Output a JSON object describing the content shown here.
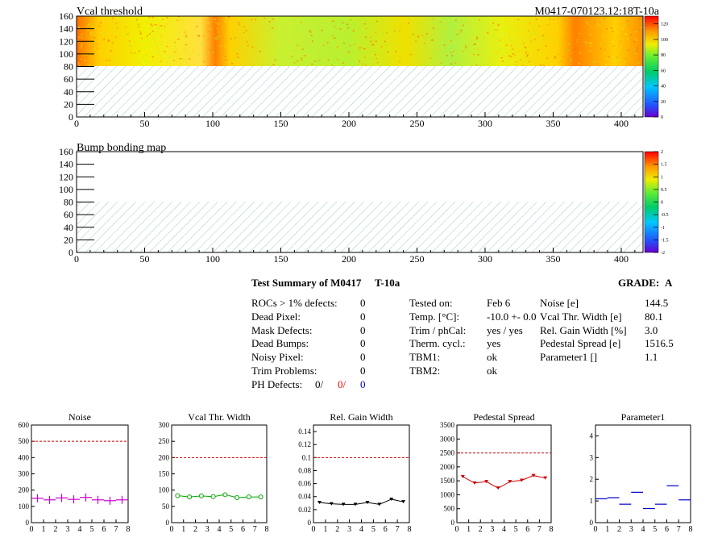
{
  "maps": {
    "vcal": {
      "title": "Vcal threshold",
      "module_label": "M0417-070123.12:18T-10a",
      "x_ticks": [
        "0",
        "50",
        "100",
        "150",
        "200",
        "250",
        "300",
        "350",
        "400"
      ],
      "y_ticks": [
        "0",
        "20",
        "40",
        "60",
        "80",
        "100",
        "120",
        "140",
        "160"
      ],
      "scale_ticks": [
        "0",
        "20",
        "40",
        "60",
        "80",
        "100",
        "120"
      ]
    },
    "bump": {
      "title": "Bump bonding map",
      "x_ticks": [
        "0",
        "50",
        "100",
        "150",
        "200",
        "250",
        "300",
        "350",
        "400"
      ],
      "y_ticks": [
        "0",
        "20",
        "40",
        "60",
        "80",
        "100",
        "120",
        "140",
        "160"
      ],
      "scale_ticks": [
        "-2",
        "-1.5",
        "-1",
        "-0.5",
        "0",
        "0.5",
        "1",
        "1.5",
        "2"
      ]
    }
  },
  "summary": {
    "title": "Test Summary of M0417",
    "temp_tag": "T-10a",
    "grade_label": "GRADE:",
    "grade": "A",
    "defects": [
      {
        "label": "ROCs > 1% defects:",
        "value": "0"
      },
      {
        "label": "Dead Pixel:",
        "value": "0"
      },
      {
        "label": "Mask Defects:",
        "value": "0"
      },
      {
        "label": "Dead Bumps:",
        "value": "0"
      },
      {
        "label": "Noisy Pixel:",
        "value": "0"
      },
      {
        "label": "Trim Problems:",
        "value": "0"
      }
    ],
    "ph_label": "PH Defects:",
    "ph_values": [
      "0/",
      "0/",
      "0"
    ],
    "ph_colors": [
      "#000000",
      "#ff0000",
      "#0000cc"
    ],
    "conditions": [
      {
        "label": "Tested on:",
        "value": "Feb 6"
      },
      {
        "label": "Temp. [°C]:",
        "value": "-10.0 +- 0.0"
      },
      {
        "label": "Trim / phCal:",
        "value": "yes / yes"
      },
      {
        "label": "Therm. cycl.:",
        "value": "yes"
      },
      {
        "label": "TBM1:",
        "value": "ok"
      },
      {
        "label": "TBM2:",
        "value": "ok"
      }
    ],
    "params": [
      {
        "label": "Noise [e]",
        "value": "144.5"
      },
      {
        "label": "Vcal Thr. Width [e]",
        "value": "80.1"
      },
      {
        "label": "Rel. Gain Width [%]",
        "value": "3.0"
      },
      {
        "label": "Pedestal Spread [e]",
        "value": "1516.5"
      },
      {
        "label": "Parameter1 []",
        "value": "1.1"
      }
    ]
  },
  "chart_data": [
    {
      "type": "heatmap",
      "title": "Vcal threshold",
      "xlim": [
        0,
        416
      ],
      "ylim": [
        0,
        160
      ],
      "z_range": [
        0,
        130
      ],
      "hatched_region_y": [
        0,
        80
      ],
      "typical_value": 95
    },
    {
      "type": "heatmap",
      "title": "Bump bonding map",
      "xlim": [
        0,
        416
      ],
      "ylim": [
        0,
        160
      ],
      "z_range": [
        -2,
        2
      ],
      "hatched_region_y": [
        0,
        80
      ]
    },
    {
      "type": "scatter",
      "title": "Noise",
      "color": "#cc00cc",
      "x": [
        0.5,
        1.5,
        2.5,
        3.5,
        4.5,
        5.5,
        6.5,
        7.5
      ],
      "values": [
        150,
        140,
        152,
        143,
        155,
        140,
        135,
        140
      ],
      "xlim": [
        0,
        8
      ],
      "ylim": [
        0,
        600
      ],
      "reference": 500,
      "x_ticks": [
        "0",
        "1",
        "2",
        "3",
        "4",
        "5",
        "6",
        "7",
        "8"
      ],
      "y_ticks": [
        "0",
        "100",
        "200",
        "300",
        "400",
        "500",
        "600"
      ]
    },
    {
      "type": "line",
      "title": "Vcal Thr. Width",
      "color": "#00aa00",
      "x": [
        0.5,
        1.5,
        2.5,
        3.5,
        4.5,
        5.5,
        6.5,
        7.5
      ],
      "values": [
        83,
        79,
        82,
        80,
        86,
        77,
        79,
        79
      ],
      "xlim": [
        0,
        8
      ],
      "ylim": [
        0,
        300
      ],
      "reference": 200,
      "x_ticks": [
        "0",
        "1",
        "2",
        "3",
        "4",
        "5",
        "6",
        "7",
        "8"
      ],
      "y_ticks": [
        "0",
        "50",
        "100",
        "150",
        "200",
        "250",
        "300"
      ]
    },
    {
      "type": "line",
      "title": "Rel. Gain Width",
      "color": "#000000",
      "x": [
        0.5,
        1.5,
        2.5,
        3.5,
        4.5,
        5.5,
        6.5,
        7.5
      ],
      "values": [
        0.031,
        0.029,
        0.028,
        0.028,
        0.031,
        0.028,
        0.036,
        0.032
      ],
      "xlim": [
        0,
        8
      ],
      "ylim": [
        0,
        0.15
      ],
      "reference": 0.1,
      "x_ticks": [
        "0",
        "1",
        "2",
        "3",
        "4",
        "5",
        "6",
        "7",
        "8"
      ],
      "y_ticks": [
        "0",
        "0.02",
        "0.04",
        "0.06",
        "0.08",
        "0.1",
        "0.12",
        "0.14"
      ]
    },
    {
      "type": "line",
      "title": "Pedestal Spread",
      "color": "#cc0000",
      "x": [
        0.5,
        1.5,
        2.5,
        3.5,
        4.5,
        5.5,
        6.5,
        7.5
      ],
      "values": [
        1650,
        1420,
        1470,
        1240,
        1470,
        1520,
        1690,
        1600
      ],
      "xlim": [
        0,
        8
      ],
      "ylim": [
        0,
        3500
      ],
      "reference": 2500,
      "x_ticks": [
        "0",
        "1",
        "2",
        "3",
        "4",
        "5",
        "6",
        "7",
        "8"
      ],
      "y_ticks": [
        "0",
        "500",
        "1000",
        "1500",
        "2000",
        "2500",
        "3000",
        "3500"
      ]
    },
    {
      "type": "scatter",
      "title": "Parameter1",
      "color": "#0000cc",
      "x": [
        0.5,
        1.5,
        2.5,
        3.5,
        4.5,
        5.5,
        6.5,
        7.5
      ],
      "values": [
        1.1,
        1.15,
        0.85,
        1.4,
        0.65,
        0.85,
        1.7,
        1.05
      ],
      "xlim": [
        0,
        8
      ],
      "ylim": [
        0,
        4.5
      ],
      "x_ticks": [
        "0",
        "1",
        "2",
        "3",
        "4",
        "5",
        "6",
        "7",
        "8"
      ],
      "y_ticks": [
        "0",
        "1",
        "2",
        "3",
        "4"
      ]
    }
  ]
}
